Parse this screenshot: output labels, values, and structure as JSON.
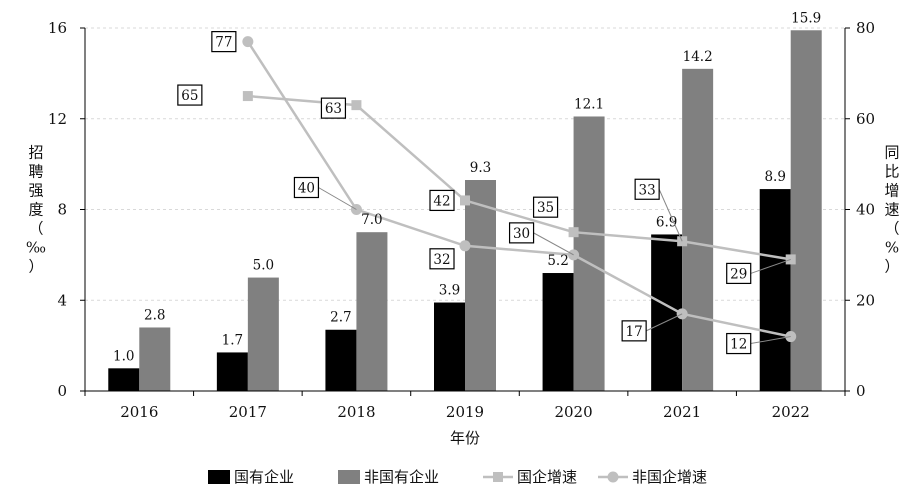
{
  "chart_data": {
    "type": "bar",
    "categories": [
      "2016",
      "2017",
      "2018",
      "2019",
      "2020",
      "2021",
      "2022"
    ],
    "xlabel": "年份",
    "ylabel_left": "招聘强度（‰）",
    "ylabel_right": "同比增速（%）",
    "ylim_left": [
      0,
      16
    ],
    "yticks_left": [
      "0",
      "4",
      "8",
      "12",
      "16"
    ],
    "ylim_right": [
      0,
      80
    ],
    "yticks_right": [
      "0",
      "20",
      "40",
      "60",
      "80"
    ],
    "grid": "horizontal dashed",
    "legend_position": "bottom",
    "bar_series": [
      {
        "name": "国有企业",
        "color": "#000000",
        "values": [
          1.0,
          1.7,
          2.7,
          3.9,
          5.2,
          6.9,
          8.9
        ],
        "labels": [
          "1.0",
          "1.7",
          "2.7",
          "3.9",
          "5.2",
          "6.9",
          "8.9"
        ]
      },
      {
        "name": "非国有企业",
        "color": "#808080",
        "values": [
          2.8,
          5.0,
          7.0,
          9.3,
          12.1,
          14.2,
          15.9
        ],
        "labels": [
          "2.8",
          "5.0",
          "7.0",
          "9.3",
          "12.1",
          "14.2",
          "15.9"
        ]
      }
    ],
    "line_series": [
      {
        "name": "国企增速",
        "marker": "square",
        "color": "#bfbfbf",
        "x": [
          "2017",
          "2018",
          "2019",
          "2020",
          "2021",
          "2022"
        ],
        "values": [
          65,
          63,
          42,
          35,
          33,
          29
        ],
        "labels": [
          "65",
          "63",
          "42",
          "35",
          "33",
          "29"
        ]
      },
      {
        "name": "非国企增速",
        "marker": "circle",
        "color": "#bfbfbf",
        "x": [
          "2017",
          "2018",
          "2019",
          "2020",
          "2021",
          "2022"
        ],
        "values": [
          77,
          40,
          32,
          30,
          17,
          12
        ],
        "labels": [
          "77",
          "40",
          "32",
          "30",
          "17",
          "12"
        ]
      }
    ]
  }
}
